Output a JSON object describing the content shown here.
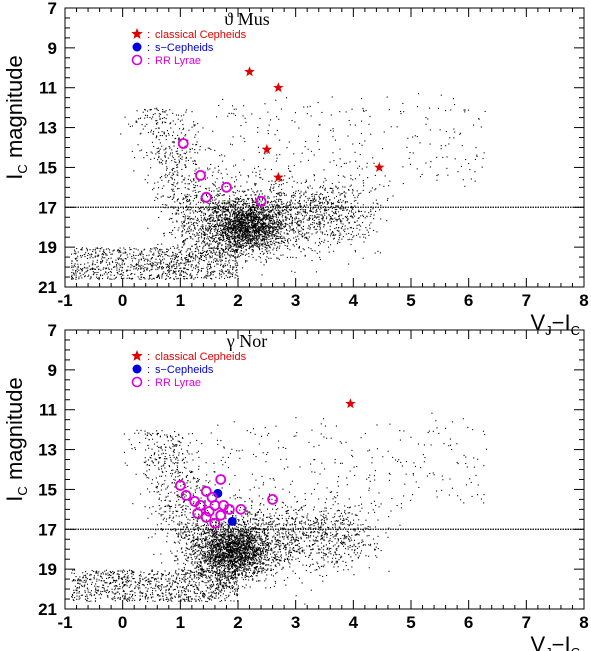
{
  "chart_data": [
    {
      "type": "scatter",
      "title": "ϑ Mus",
      "xlabel": "V_J−I_C",
      "ylabel": "I_C magnitude",
      "xlim": [
        -1,
        8
      ],
      "ylim": [
        21,
        7
      ],
      "y_inverted": true,
      "xticks": [
        "-1",
        "0",
        "1",
        "2",
        "3",
        "4",
        "5",
        "6",
        "7",
        "8"
      ],
      "yticks": [
        "7",
        "9",
        "11",
        "13",
        "15",
        "17",
        "19",
        "21"
      ],
      "grid": false,
      "legend_placement": "top-left",
      "reference_line_y": 17,
      "background_stars": "dense black dot cloud, concentrated near V-I≈2.1, I≈18",
      "series": [
        {
          "name": "classical Cepheids",
          "marker": "star",
          "color": "#e00000",
          "points": [
            [
              2.2,
              10.2
            ],
            [
              2.7,
              11.0
            ],
            [
              2.5,
              14.1
            ],
            [
              2.7,
              15.5
            ],
            [
              4.45,
              15.0
            ]
          ]
        },
        {
          "name": "s−Cepheids",
          "marker": "filled-circle",
          "color": "#0000dd",
          "points": []
        },
        {
          "name": "RR Lyrae",
          "marker": "open-circle",
          "color": "#dd00dd",
          "points": [
            [
              1.05,
              13.8
            ],
            [
              1.35,
              15.4
            ],
            [
              1.45,
              16.5
            ],
            [
              1.8,
              16.0
            ],
            [
              2.4,
              16.7
            ]
          ]
        }
      ]
    },
    {
      "type": "scatter",
      "title": "γ Nor",
      "xlabel": "V_J−I_C",
      "ylabel": "I_C magnitude",
      "xlim": [
        -1,
        8
      ],
      "ylim": [
        21,
        7
      ],
      "y_inverted": true,
      "xticks": [
        "-1",
        "0",
        "1",
        "2",
        "3",
        "4",
        "5",
        "6",
        "7",
        "8"
      ],
      "yticks": [
        "7",
        "9",
        "11",
        "13",
        "15",
        "17",
        "19",
        "21"
      ],
      "grid": false,
      "legend_placement": "top-left",
      "reference_line_y": 17,
      "background_stars": "dense black dot cloud, concentrated near V-I≈1.9, I≈18",
      "series": [
        {
          "name": "classical Cepheids",
          "marker": "star",
          "color": "#e00000",
          "points": [
            [
              3.95,
              10.7
            ]
          ]
        },
        {
          "name": "s−Cepheids",
          "marker": "filled-circle",
          "color": "#0000dd",
          "points": [
            [
              1.65,
              15.2
            ],
            [
              1.9,
              16.6
            ]
          ]
        },
        {
          "name": "RR Lyrae",
          "marker": "open-circle",
          "color": "#dd00dd",
          "points": [
            [
              1.0,
              14.8
            ],
            [
              1.1,
              15.3
            ],
            [
              1.25,
              15.6
            ],
            [
              1.3,
              16.2
            ],
            [
              1.35,
              15.8
            ],
            [
              1.45,
              15.1
            ],
            [
              1.45,
              16.4
            ],
            [
              1.5,
              16.1
            ],
            [
              1.55,
              15.4
            ],
            [
              1.6,
              16.7
            ],
            [
              1.6,
              15.8
            ],
            [
              1.7,
              14.5
            ],
            [
              1.7,
              16.3
            ],
            [
              1.75,
              15.8
            ],
            [
              1.85,
              16.0
            ],
            [
              2.05,
              16.0
            ],
            [
              2.6,
              15.5
            ]
          ]
        }
      ]
    }
  ]
}
